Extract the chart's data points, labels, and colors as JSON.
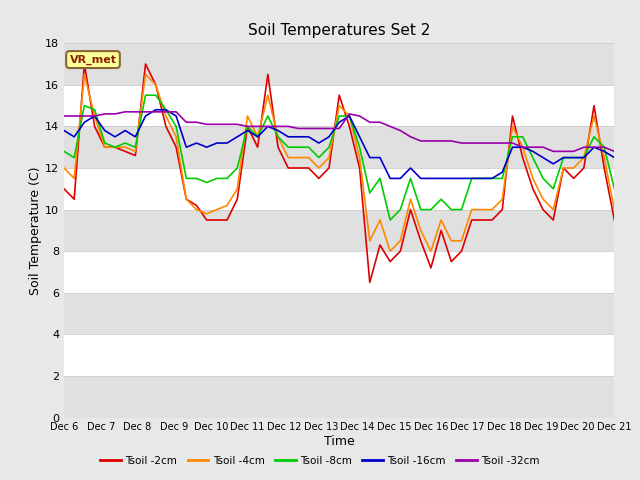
{
  "title": "Soil Temperatures Set 2",
  "xlabel": "Time",
  "ylabel": "Soil Temperature (C)",
  "ylim": [
    0,
    18
  ],
  "yticks": [
    0,
    2,
    4,
    6,
    8,
    10,
    12,
    14,
    16,
    18
  ],
  "xtick_labels": [
    "Dec 6",
    "Dec 7",
    "Dec 8",
    "Dec 9",
    "Dec 10",
    "Dec 11",
    "Dec 12",
    "Dec 13",
    "Dec 14",
    "Dec 15",
    "Dec 16",
    "Dec 17",
    "Dec 18",
    "Dec 19",
    "Dec 20",
    "Dec 21"
  ],
  "series_colors": [
    "#dd0000",
    "#ff8800",
    "#00cc00",
    "#0000cc",
    "#9900aa"
  ],
  "series_names": [
    "Tsoil -2cm",
    "Tsoil -4cm",
    "Tsoil -8cm",
    "Tsoil -16cm",
    "Tsoil -32cm"
  ],
  "fig_bg_color": "#e8e8e8",
  "plot_bg_color": "#ffffff",
  "band_color": "#e0e0e0",
  "annotation_text": "VR_met",
  "annotation_bg": "#ffff99",
  "annotation_border": "#886633",
  "tsoil_2cm": [
    11.0,
    10.5,
    17.0,
    14.0,
    13.0,
    13.0,
    12.8,
    12.6,
    17.0,
    16.0,
    14.0,
    13.0,
    10.5,
    10.2,
    9.5,
    9.5,
    9.5,
    10.5,
    14.0,
    13.0,
    16.5,
    13.0,
    12.0,
    12.0,
    12.0,
    11.5,
    12.0,
    15.5,
    14.0,
    12.0,
    6.5,
    8.3,
    7.5,
    8.0,
    10.0,
    8.5,
    7.2,
    9.0,
    7.5,
    8.0,
    9.5,
    9.5,
    9.5,
    10.0,
    14.5,
    12.5,
    11.0,
    10.0,
    9.5,
    12.0,
    11.5,
    12.0,
    15.0,
    12.0,
    9.5
  ],
  "tsoil_4cm": [
    12.0,
    11.5,
    16.5,
    14.5,
    13.0,
    13.0,
    13.0,
    12.8,
    16.5,
    16.0,
    14.5,
    13.5,
    10.5,
    10.0,
    9.8,
    10.0,
    10.2,
    11.0,
    14.5,
    13.5,
    15.5,
    13.5,
    12.5,
    12.5,
    12.5,
    12.0,
    12.5,
    15.0,
    14.5,
    12.5,
    8.5,
    9.5,
    8.0,
    8.5,
    10.5,
    9.0,
    8.0,
    9.5,
    8.5,
    8.5,
    10.0,
    10.0,
    10.0,
    10.5,
    14.0,
    13.0,
    11.5,
    10.5,
    10.0,
    12.0,
    12.0,
    12.5,
    14.5,
    12.5,
    10.0
  ],
  "tsoil_8cm": [
    12.8,
    12.5,
    15.0,
    14.8,
    13.2,
    13.0,
    13.2,
    13.0,
    15.5,
    15.5,
    14.8,
    14.0,
    11.5,
    11.5,
    11.3,
    11.5,
    11.5,
    12.0,
    14.0,
    13.5,
    14.5,
    13.5,
    13.0,
    13.0,
    13.0,
    12.5,
    13.0,
    14.5,
    14.5,
    13.0,
    10.8,
    11.5,
    9.5,
    10.0,
    11.5,
    10.0,
    10.0,
    10.5,
    10.0,
    10.0,
    11.5,
    11.5,
    11.5,
    11.5,
    13.5,
    13.5,
    12.5,
    11.5,
    11.0,
    12.5,
    12.5,
    12.5,
    13.5,
    13.0,
    11.0
  ],
  "tsoil_16cm": [
    13.8,
    13.5,
    14.2,
    14.5,
    13.8,
    13.5,
    13.8,
    13.5,
    14.5,
    14.8,
    14.8,
    14.5,
    13.0,
    13.2,
    13.0,
    13.2,
    13.2,
    13.5,
    13.8,
    13.5,
    14.0,
    13.8,
    13.5,
    13.5,
    13.5,
    13.2,
    13.5,
    14.2,
    14.5,
    13.5,
    12.5,
    12.5,
    11.5,
    11.5,
    12.0,
    11.5,
    11.5,
    11.5,
    11.5,
    11.5,
    11.5,
    11.5,
    11.5,
    11.8,
    13.0,
    13.0,
    12.8,
    12.5,
    12.2,
    12.5,
    12.5,
    12.5,
    13.0,
    12.8,
    12.5
  ],
  "tsoil_32cm": [
    14.5,
    14.5,
    14.5,
    14.5,
    14.6,
    14.6,
    14.7,
    14.7,
    14.7,
    14.7,
    14.7,
    14.7,
    14.2,
    14.2,
    14.1,
    14.1,
    14.1,
    14.1,
    14.0,
    14.0,
    14.0,
    14.0,
    14.0,
    13.9,
    13.9,
    13.9,
    13.9,
    13.9,
    14.6,
    14.5,
    14.2,
    14.2,
    14.0,
    13.8,
    13.5,
    13.3,
    13.3,
    13.3,
    13.3,
    13.2,
    13.2,
    13.2,
    13.2,
    13.2,
    13.2,
    13.0,
    13.0,
    13.0,
    12.8,
    12.8,
    12.8,
    13.0,
    13.0,
    13.0,
    12.8
  ]
}
